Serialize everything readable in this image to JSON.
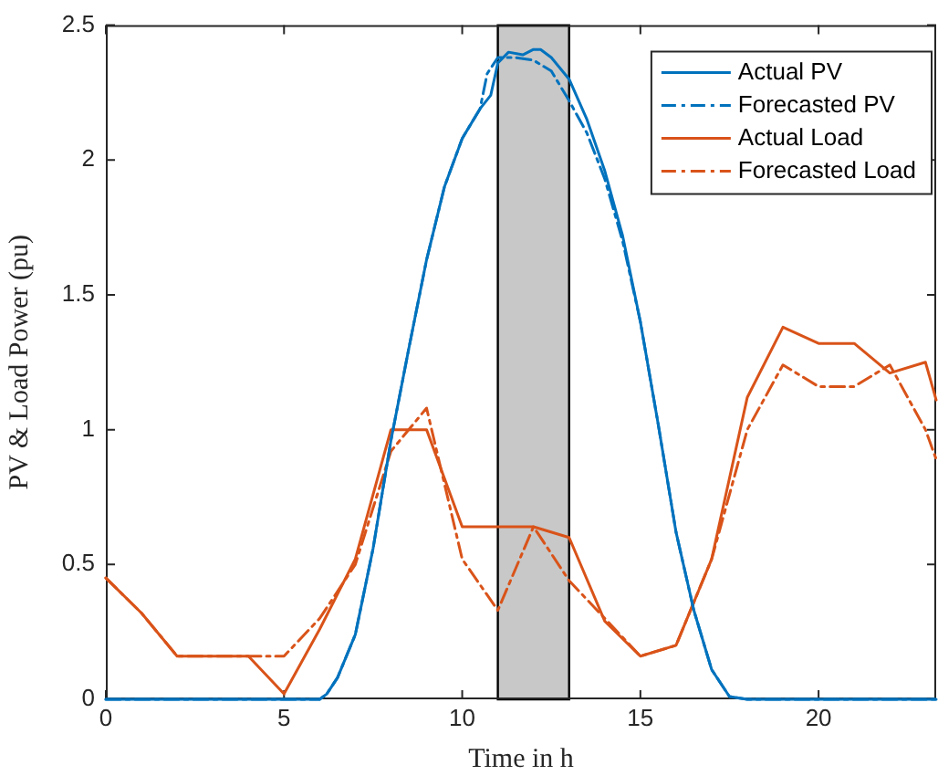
{
  "chart_data": {
    "type": "line",
    "xlabel": "Time in h",
    "ylabel": "PV & Load Power (pu)",
    "xlim": [
      0,
      23.3
    ],
    "xticks": [
      0,
      5,
      10,
      15,
      20
    ],
    "ylim": [
      0,
      2.5
    ],
    "yticks": [
      0,
      0.5,
      1,
      1.5,
      2,
      2.5
    ],
    "grid": false,
    "legend": "top right",
    "marker": "none",
    "bands": [
      {
        "axis": "x",
        "from": 11,
        "to": 13,
        "color": "#c8c8c8"
      }
    ],
    "series": [
      {
        "name": "Actual PV",
        "color": "#0072bd",
        "line_style": "solid",
        "x": [
          0,
          6,
          6.2,
          6.5,
          7,
          7.5,
          8,
          8.5,
          9,
          9.5,
          10,
          10.5,
          10.8,
          11,
          11.3,
          11.7,
          12,
          12.2,
          12.5,
          13,
          13.5,
          14,
          14.5,
          15,
          15.5,
          16,
          16.5,
          17,
          17.5,
          18,
          23.3
        ],
        "values": [
          0,
          0,
          0.02,
          0.08,
          0.24,
          0.56,
          0.96,
          1.3,
          1.63,
          1.9,
          2.08,
          2.19,
          2.24,
          2.36,
          2.4,
          2.39,
          2.41,
          2.41,
          2.38,
          2.3,
          2.15,
          1.96,
          1.72,
          1.4,
          1.02,
          0.62,
          0.33,
          0.11,
          0.01,
          0,
          0
        ]
      },
      {
        "name": "Forecasted PV",
        "color": "#0072bd",
        "line_style": "dashdot",
        "x": [
          0,
          6,
          6.2,
          6.5,
          7,
          7.5,
          8,
          8.5,
          9,
          9.5,
          10,
          10.5,
          10.7,
          11,
          11.5,
          12,
          12.5,
          13,
          13.5,
          14,
          14.5,
          15,
          15.5,
          16,
          16.5,
          17,
          17.5,
          18,
          23.3
        ],
        "values": [
          0,
          0,
          0.02,
          0.08,
          0.24,
          0.56,
          0.96,
          1.3,
          1.63,
          1.9,
          2.08,
          2.19,
          2.32,
          2.38,
          2.38,
          2.37,
          2.33,
          2.22,
          2.1,
          1.93,
          1.7,
          1.4,
          1.02,
          0.62,
          0.33,
          0.11,
          0.01,
          0,
          0
        ]
      },
      {
        "name": "Actual Load",
        "color": "#d95319",
        "line_style": "solid",
        "x": [
          0,
          1,
          2,
          3,
          4,
          5,
          6,
          7,
          8,
          9,
          10,
          11,
          12,
          13,
          14,
          15,
          16,
          17,
          18,
          19,
          20,
          21,
          22,
          23,
          23.3
        ],
        "values": [
          0.45,
          0.32,
          0.16,
          0.16,
          0.16,
          0.02,
          0.26,
          0.52,
          1,
          1,
          0.64,
          0.64,
          0.64,
          0.6,
          0.29,
          0.16,
          0.2,
          0.52,
          1.12,
          1.38,
          1.32,
          1.32,
          1.21,
          1.25,
          1.11
        ]
      },
      {
        "name": "Forecasted Load",
        "color": "#d95319",
        "line_style": "dashdot",
        "x": [
          0,
          1,
          2,
          3,
          4,
          5,
          6,
          7,
          8,
          9,
          10,
          11,
          12,
          13,
          14,
          15,
          16,
          17,
          18,
          19,
          20,
          21,
          22,
          23,
          23.3
        ],
        "values": [
          0.45,
          0.32,
          0.16,
          0.16,
          0.16,
          0.16,
          0.3,
          0.5,
          0.92,
          1.08,
          0.52,
          0.33,
          0.64,
          0.44,
          0.3,
          0.16,
          0.2,
          0.52,
          1,
          1.24,
          1.16,
          1.16,
          1.24,
          1,
          0.89
        ]
      }
    ]
  }
}
